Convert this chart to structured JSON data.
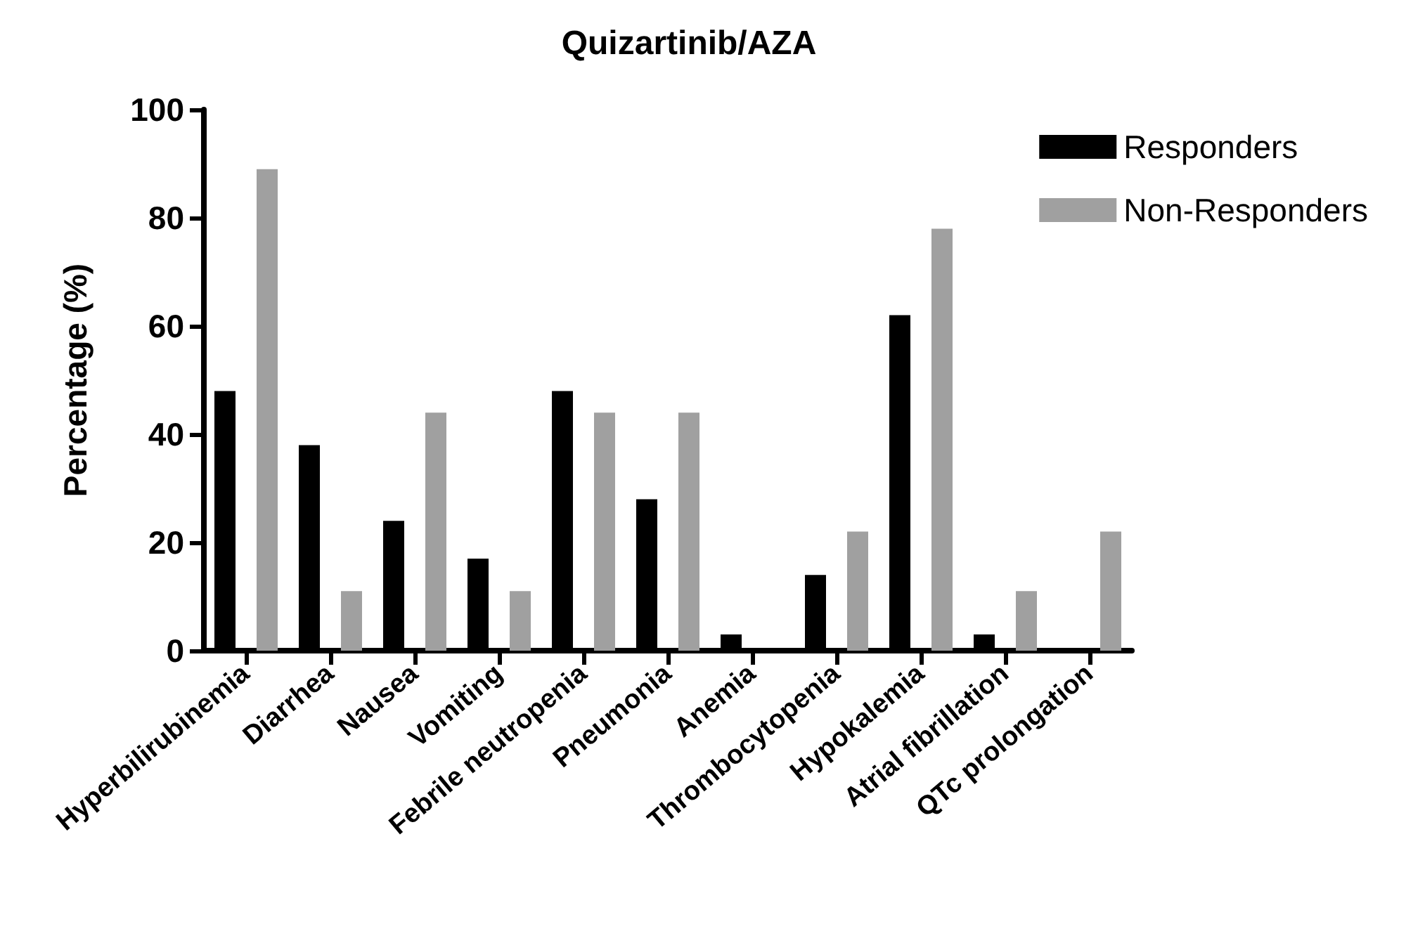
{
  "chart_data": {
    "type": "bar",
    "title": "Quizartinib/AZA",
    "ylabel": "Percentage (%)",
    "categories": [
      "Hyperbilirubinemia",
      "Diarrhea",
      "Nausea",
      "Vomiting",
      "Febrile neutropenia",
      "Pneumonia",
      "Anemia",
      "Thrombocytopenia",
      "Hypokalemia",
      "Atrial fibrillation",
      "QTc prolongation"
    ],
    "series": [
      {
        "name": "Responders",
        "color": "#000000",
        "values": [
          48,
          38,
          24,
          17,
          48,
          28,
          3,
          14,
          62,
          3,
          0
        ]
      },
      {
        "name": "Non-Responders",
        "color": "#a0a0a0",
        "values": [
          89,
          11,
          44,
          11,
          44,
          44,
          0,
          22,
          78,
          11,
          22
        ]
      }
    ],
    "ylim": [
      0,
      100
    ],
    "yticks": [
      0,
      20,
      40,
      60,
      80,
      100
    ],
    "grid": false,
    "legend": "top right"
  }
}
